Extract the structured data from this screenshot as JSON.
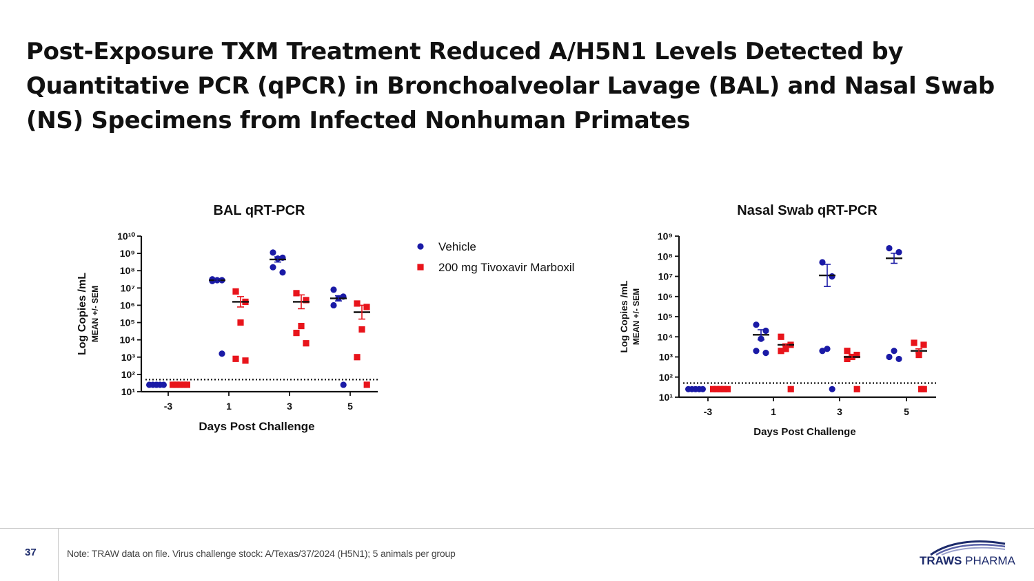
{
  "slide": {
    "title_lines": [
      "Post-Exposure TXM Treatment Reduced A/H5N1 Levels Detected by",
      "Quantitative PCR (qPCR)  in Bronchoalveolar Lavage (BAL) and Nasal Swab",
      "(NS) Specimens from Infected Nonhuman Primates"
    ],
    "page_number": "37",
    "footnote": "Note: TRAW data on file. Virus challenge stock: A/Texas/37/2024 (H5N1); 5 animals per group",
    "logo": {
      "word1": "TRAWS",
      "word2": "PHARMA"
    }
  },
  "legend": {
    "items": [
      {
        "label": "Vehicle",
        "color": "#1a1aa6",
        "marker": "circle"
      },
      {
        "label": "200 mg Tivoxavir Marboxil",
        "color": "#e8141b",
        "marker": "square"
      }
    ]
  },
  "colors": {
    "vehicle": "#1a1aa6",
    "treatment": "#e8141b",
    "title": "#111111",
    "brand": "#1c2a6b"
  },
  "chart_data": [
    {
      "type": "scatter",
      "title": "BAL qRT-PCR",
      "xlabel": "Days Post Challenge",
      "ylabel": "Log Copies /mL",
      "ylabel2": "MEAN +/- SEM",
      "y_scale": "log10",
      "ylim_exp": [
        1,
        10
      ],
      "yticks_exp": [
        1,
        2,
        3,
        4,
        5,
        6,
        7,
        8,
        9,
        10
      ],
      "categories": [
        "-3",
        "1",
        "3",
        "5"
      ],
      "detection_limit_exp": 1.7,
      "series": [
        {
          "name": "Vehicle",
          "points_log10": [
            [
              1.4,
              1.4,
              1.4,
              1.4,
              1.4
            ],
            [
              7.5,
              7.45,
              7.45,
              7.4,
              3.2
            ],
            [
              9.05,
              8.75,
              8.7,
              8.2,
              7.9
            ],
            [
              6.9,
              6.5,
              6.4,
              6.0,
              1.4
            ]
          ],
          "mean_log10": [
            1.4,
            7.45,
            8.65,
            6.4
          ],
          "sem_log10": [
            0,
            0.05,
            0.15,
            0.15
          ]
        },
        {
          "name": "200 mg Tivoxavir Marboxil",
          "points_log10": [
            [
              1.4,
              1.4,
              1.4,
              1.4,
              1.4
            ],
            [
              6.8,
              6.2,
              5.0,
              2.9,
              2.8
            ],
            [
              6.7,
              6.3,
              4.8,
              4.4,
              3.8
            ],
            [
              6.1,
              5.9,
              4.6,
              3.0,
              1.4
            ]
          ],
          "mean_log10": [
            1.4,
            6.2,
            6.2,
            5.6
          ],
          "sem_log10": [
            0,
            0.3,
            0.4,
            0.4
          ]
        }
      ]
    },
    {
      "type": "scatter",
      "title": "Nasal Swab qRT-PCR",
      "xlabel": "Days Post Challenge",
      "ylabel": "Log Copies /mL",
      "ylabel2": "MEAN +/- SEM",
      "y_scale": "log10",
      "ylim_exp": [
        1,
        9
      ],
      "yticks_exp": [
        1,
        2,
        3,
        4,
        5,
        6,
        7,
        8,
        9
      ],
      "categories": [
        "-3",
        "1",
        "3",
        "5"
      ],
      "detection_limit_exp": 1.7,
      "series": [
        {
          "name": "Vehicle",
          "points_log10": [
            [
              1.4,
              1.4,
              1.4,
              1.4,
              1.4
            ],
            [
              4.6,
              4.3,
              3.9,
              3.3,
              3.2
            ],
            [
              7.7,
              7.0,
              3.4,
              3.3,
              1.4
            ],
            [
              8.4,
              8.2,
              3.3,
              3.0,
              2.9
            ]
          ],
          "mean_log10": [
            1.4,
            4.1,
            7.05,
            7.9
          ],
          "sem_log10": [
            0,
            0.25,
            0.55,
            0.25
          ]
        },
        {
          "name": "200 mg Tivoxavir Marboxil",
          "points_log10": [
            [
              1.4,
              1.4,
              1.4,
              1.4,
              1.4
            ],
            [
              4.0,
              3.6,
              3.4,
              3.3,
              1.4
            ],
            [
              3.3,
              3.1,
              3.0,
              2.9,
              1.4
            ],
            [
              3.7,
              3.6,
              3.1,
              1.4,
              1.4
            ]
          ],
          "mean_log10": [
            1.4,
            3.6,
            3.0,
            3.3
          ],
          "sem_log10": [
            0,
            0.05,
            0.1,
            0.1
          ]
        }
      ]
    }
  ]
}
